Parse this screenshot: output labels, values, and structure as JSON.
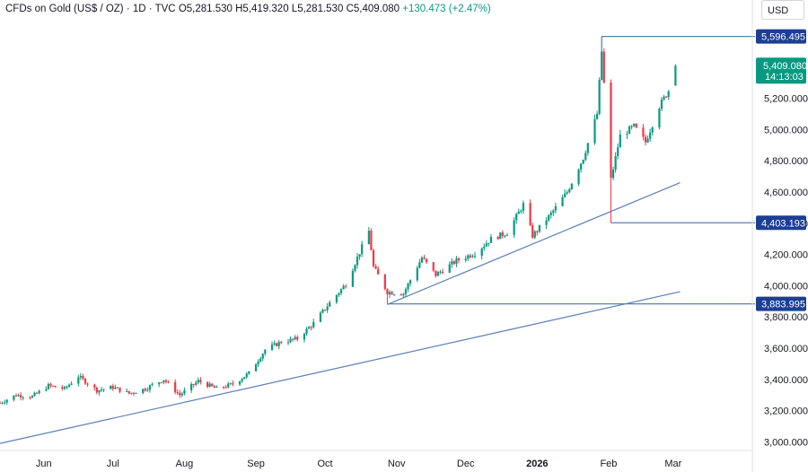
{
  "header": {
    "symbol": "CFDs on Gold (US$ / OZ)",
    "interval": "1D",
    "source": "TVC",
    "open": "O5,281.530",
    "high": "H5,419.320",
    "low": "L5,281.530",
    "close": "C5,409.080",
    "change": "+130.473 (+2.47%)"
  },
  "currency_button": "USD",
  "colors": {
    "up": "#089981",
    "down": "#f23645",
    "line": "#5b7fb8",
    "tag": "#1c3f94"
  },
  "chart_data": {
    "type": "candlestick",
    "y_ticks": [
      "5,200.000",
      "5,000.000",
      "4,800.000",
      "4,600.000",
      "4,400.000",
      "4,200.000",
      "4,000.000",
      "3,800.000",
      "3,600.000",
      "3,400.000",
      "3,200.000",
      "3,000.000"
    ],
    "y_tick_values": [
      5200,
      5000,
      4800,
      4600,
      4400,
      4200,
      4000,
      3800,
      3600,
      3400,
      3200,
      3000
    ],
    "ylim": [
      2945,
      5830
    ],
    "x_ticks": [
      {
        "label": "Jun",
        "date": "2025-06-01"
      },
      {
        "label": "Jul",
        "date": "2025-07-01"
      },
      {
        "label": "Aug",
        "date": "2025-08-01"
      },
      {
        "label": "Sep",
        "date": "2025-09-01"
      },
      {
        "label": "Oct",
        "date": "2025-10-01"
      },
      {
        "label": "Nov",
        "date": "2025-11-01"
      },
      {
        "label": "Dec",
        "date": "2025-12-01"
      },
      {
        "label": "2026",
        "date": "2026-01-01",
        "bold": true
      },
      {
        "label": "Feb",
        "date": "2026-02-01"
      },
      {
        "label": "Mar",
        "date": "2026-03-01"
      }
    ],
    "xlim": [
      "2025-05-13",
      "2026-04-02"
    ],
    "price_path": [
      [
        "2025-05-13",
        3250
      ],
      [
        "2025-05-20",
        3300
      ],
      [
        "2025-05-27",
        3290
      ],
      [
        "2025-06-03",
        3360
      ],
      [
        "2025-06-10",
        3340
      ],
      [
        "2025-06-16",
        3420
      ],
      [
        "2025-06-24",
        3330
      ],
      [
        "2025-07-01",
        3350
      ],
      [
        "2025-07-08",
        3310
      ],
      [
        "2025-07-15",
        3340
      ],
      [
        "2025-07-23",
        3400
      ],
      [
        "2025-07-30",
        3300
      ],
      [
        "2025-08-07",
        3390
      ],
      [
        "2025-08-15",
        3340
      ],
      [
        "2025-08-22",
        3370
      ],
      [
        "2025-08-29",
        3440
      ],
      [
        "2025-09-05",
        3590
      ],
      [
        "2025-09-12",
        3640
      ],
      [
        "2025-09-19",
        3660
      ],
      [
        "2025-09-26",
        3760
      ],
      [
        "2025-10-03",
        3890
      ],
      [
        "2025-10-10",
        4010
      ],
      [
        "2025-10-20",
        4350
      ],
      [
        "2025-10-22",
        4120
      ],
      [
        "2025-10-28",
        3960
      ],
      [
        "2025-11-04",
        3950
      ],
      [
        "2025-11-12",
        4180
      ],
      [
        "2025-11-18",
        4070
      ],
      [
        "2025-11-27",
        4160
      ],
      [
        "2025-12-05",
        4210
      ],
      [
        "2025-12-12",
        4300
      ],
      [
        "2025-12-19",
        4340
      ],
      [
        "2025-12-26",
        4520
      ],
      [
        "2025-12-30",
        4320
      ],
      [
        "2026-01-07",
        4460
      ],
      [
        "2026-01-14",
        4600
      ],
      [
        "2026-01-21",
        4820
      ],
      [
        "2026-01-27",
        5100
      ],
      [
        "2026-01-29",
        5500
      ],
      [
        "2026-02-02",
        4680
      ],
      [
        "2026-02-06",
        4960
      ],
      [
        "2026-02-12",
        5020
      ],
      [
        "2026-02-17",
        4920
      ],
      [
        "2026-02-23",
        5150
      ],
      [
        "2026-02-27",
        5250
      ],
      [
        "2026-03-02",
        5409
      ]
    ],
    "levels": [
      {
        "label": "5,596.495",
        "value": 5596.495,
        "from": "2026-01-29",
        "kind": "line"
      },
      {
        "label": "5,409.080",
        "value": 5409.08,
        "kind": "last"
      },
      {
        "label": "4,403.193",
        "value": 4403.193,
        "from": "2026-02-02",
        "kind": "line"
      },
      {
        "label": "3,883.995",
        "value": 3883.995,
        "from": "2025-10-28",
        "kind": "line"
      }
    ],
    "countdown": "14:13:03",
    "trendlines": [
      {
        "from": [
          "2025-05-13",
          2990
        ],
        "to": [
          "2026-03-04",
          3962
        ]
      },
      {
        "from": [
          "2025-10-28",
          3880
        ],
        "to": [
          "2026-03-04",
          4660
        ]
      }
    ]
  }
}
